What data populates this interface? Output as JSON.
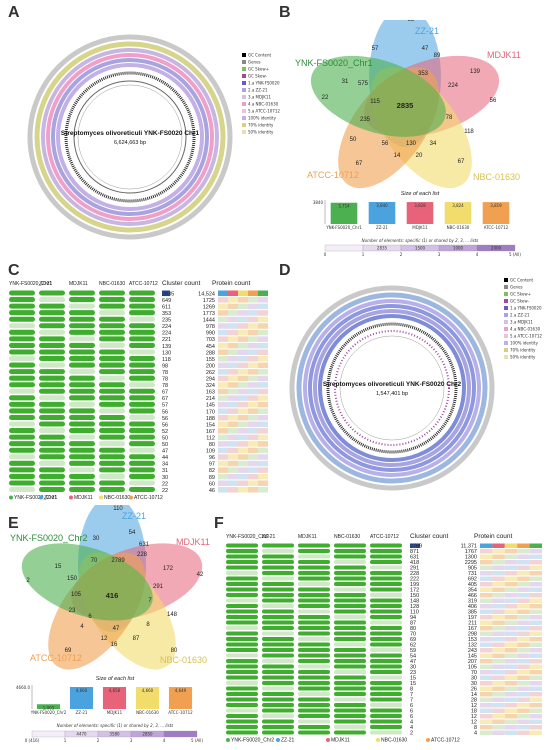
{
  "labels": {
    "A": "A",
    "B": "B",
    "C": "C",
    "D": "D",
    "E": "E",
    "F": "F"
  },
  "panelA": {
    "title": "Streptomyces olivoreticuli YNK-FS0020 Chr1",
    "size": "6,624,663 bp",
    "legend": [
      "GC Content",
      "Genes",
      "GC Skew+",
      "GC Skew-",
      "1.a YNK-FS0020",
      "2.a ZZ-21",
      "3.a MDJK11",
      "4.a NBC-01630",
      "5.a ATCC-10712",
      "100% identity",
      "70% identity",
      "50% identity"
    ]
  },
  "panelD": {
    "title": "Streptomyces olivoreticuli YNK-FS0020 Chr2",
    "size": "1,547,401 bp",
    "legend": [
      "GC Content",
      "Genes",
      "GC Skew+",
      "GC Skew-",
      "1.a YNK-FS0020",
      "2.a ZZ-21",
      "3.a MDJK11",
      "4.a NBC-01630",
      "5.a ATCC-10712",
      "100% identity",
      "70% identity",
      "50% identity"
    ]
  },
  "panelB": {
    "sets": [
      "YNK-FS0020_Chr1",
      "ZZ-21",
      "MDJK11",
      "NBC-01630",
      "ATCC-10712"
    ],
    "numbers": {
      "center": "2835",
      "n82": "82",
      "n139": "139",
      "n56": "56",
      "n22": "22",
      "n67": "67",
      "n57": "57",
      "n47": "47",
      "n353": "353",
      "n224": "224",
      "n575": "575",
      "n78": "78",
      "n235": "235",
      "n130": "130",
      "n34": "34",
      "n56b": "56",
      "n20": "20",
      "n89": "89",
      "n67b": "67",
      "n118": "118",
      "n50": "50",
      "n14": "14",
      "n31": "31",
      "n115": "115"
    },
    "bar_title": "Size of each list",
    "bar_values": [
      "3,714",
      "3,840",
      "3,828",
      "3,824",
      "3,819"
    ],
    "bar_names": [
      "YNK-FS0020_Chr1",
      "ZZ-21",
      "MDJK11",
      "NBC-01630",
      "ATCC-10712"
    ],
    "bar_colors": [
      "#4caf50",
      "#4aa3df",
      "#e8637a",
      "#f2dc6b",
      "#f0a050"
    ],
    "ytick": "3840",
    "footnote": "Number of elements: specific (1) or shared by 2, 3, ... lists",
    "scale": [
      "2835",
      "1500",
      "1000",
      "2000"
    ],
    "scale_ticks": [
      "0",
      "1",
      "2",
      "3",
      "4",
      "5 (All)"
    ]
  },
  "panelC": {
    "headers": [
      "YNK-FS0020_Chr1",
      "ZZ-21",
      "MDJK11",
      "NBC-01630",
      "ATCC-10712"
    ],
    "cluster_head": "Cluster count",
    "protein_head": "Protein count",
    "clusters": [
      "2835",
      "649",
      "611",
      "353",
      "235",
      "224",
      "224",
      "221",
      "139",
      "130",
      "118",
      "98",
      "78",
      "78",
      "78",
      "67",
      "67",
      "57",
      "56",
      "56",
      "56",
      "52",
      "50",
      "50",
      "47",
      "44",
      "34",
      "31",
      "30",
      "22",
      "22"
    ],
    "proteins": [
      "14,524",
      "1725",
      "1269",
      "1773",
      "1444",
      "978",
      "990",
      "703",
      "454",
      "288",
      "155",
      "200",
      "262",
      "294",
      "324",
      "163",
      "214",
      "145",
      "170",
      "188",
      "154",
      "167",
      "112",
      "80",
      "109",
      "96",
      "97",
      "82",
      "89",
      "60",
      "46"
    ],
    "legend": [
      "YNK-FS0020_Chr1",
      "ZZ-21",
      "MDJK11",
      "NBC-01630",
      "ATCC-10712"
    ]
  },
  "panelE": {
    "sets": [
      "YNK-FS0020_Chr2",
      "ZZ-21",
      "MDJK11",
      "NBC-01630",
      "ATCC-10712"
    ],
    "numbers": {
      "n110": "110",
      "n42": "42",
      "n2": "2",
      "n69": "69",
      "n80": "80",
      "n54": "54",
      "n631": "631",
      "n228": "228",
      "n172": "172",
      "n291": "291",
      "n15": "15",
      "n150": "150",
      "n70": "70",
      "n2789": "2789",
      "center": "416",
      "n23": "23",
      "n148": "148",
      "n87": "87",
      "n47": "47",
      "n12": "12",
      "n16": "16",
      "n7": "7",
      "n6": "6",
      "n4": "4",
      "n8": "8",
      "n30": "30",
      "n105": "105"
    },
    "bar_title": "Size of each list",
    "bar_values": [
      "1,003",
      "4,660",
      "4,658",
      "4,660",
      "4,649"
    ],
    "bar_names": [
      "YNK-FS0020_Chr2",
      "ZZ-21",
      "MDJK11",
      "NBC-01630",
      "ATCC-10712"
    ],
    "bar_colors": [
      "#4caf50",
      "#4aa3df",
      "#e8637a",
      "#f2dc6b",
      "#f0a050"
    ],
    "ytick": "4660.0",
    "footnote": "Number of elements: specific (1) or shared by 2, 3, ... lists",
    "scale": [
      "4470",
      "3580",
      "2850"
    ],
    "scale_ticks": [
      "0 (416)",
      "1",
      "2",
      "3",
      "4",
      "5 (All)"
    ]
  },
  "panelF": {
    "headers": [
      "YNK-FS0020_Chr2",
      "ZZ-21",
      "MDJK11",
      "NBC-01630",
      "ATCC-10712"
    ],
    "cluster_head": "Cluster count",
    "protein_head": "Protein count",
    "clusters": [
      "2789",
      "871",
      "631",
      "418",
      "291",
      "228",
      "222",
      "199",
      "172",
      "150",
      "148",
      "128",
      "110",
      "94",
      "87",
      "80",
      "70",
      "69",
      "62",
      "59",
      "54",
      "47",
      "30",
      "23",
      "15",
      "15",
      "8",
      "7",
      "7",
      "6",
      "6",
      "6",
      "4",
      "4",
      "2"
    ],
    "proteins": [
      "11,371",
      "1767",
      "1300",
      "2295",
      "905",
      "731",
      "692",
      "405",
      "354",
      "466",
      "319",
      "406",
      "385",
      "197",
      "211",
      "167",
      "298",
      "153",
      "132",
      "243",
      "145",
      "207",
      "105",
      "70",
      "30",
      "30",
      "26",
      "14",
      "28",
      "12",
      "18",
      "12",
      "12",
      "8",
      "4"
    ],
    "legend": [
      "YNK-FS0020_Chr2",
      "ZZ-21",
      "MDJK11",
      "NBC-01630",
      "ATCC-10712"
    ]
  }
}
